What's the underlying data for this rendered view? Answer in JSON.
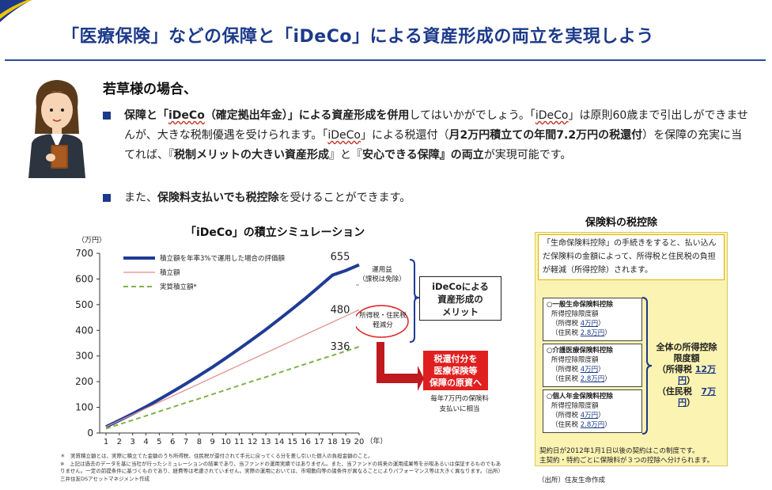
{
  "page_title": "「医療保険」などの保障と「iDeCo」による資産形成の両立を実現しよう",
  "subhead": "若草様の場合、",
  "bullets": [
    {
      "parts": [
        {
          "t": "保障と「",
          "b": true
        },
        {
          "t": "iDeCo",
          "b": true,
          "u": true
        },
        {
          "t": "（確定拠出年金）」による資産形成を併用",
          "b": true
        },
        {
          "t": "してはいかがでしょう。「"
        },
        {
          "t": "iDeCo",
          "u": true
        },
        {
          "t": "」は原則60歳まで引出しができませんが、大きな税制優遇を受けられます。「"
        },
        {
          "t": "iDeCo",
          "u": true
        },
        {
          "t": "」による税還付（"
        },
        {
          "t": "月2万円積立ての年間7.2万円の税還付",
          "b": true
        },
        {
          "t": "）を保障の充実に当てれば、『"
        },
        {
          "t": "税制メリットの大きい資産形成",
          "b": true
        },
        {
          "t": "』と『"
        },
        {
          "t": "安心できる保障",
          "b": true
        },
        {
          "t": "』の両立",
          "b": true
        },
        {
          "t": "が実現可能です。"
        }
      ]
    },
    {
      "parts": [
        {
          "t": "また、"
        },
        {
          "t": "保険料支払いでも税控除",
          "b": true
        },
        {
          "t": "を受けることができます。"
        }
      ]
    }
  ],
  "chart_data": {
    "type": "line",
    "title": "「iDeCo」の積立シミュレーション",
    "ylabel": "（万円）",
    "xlabel": "（年）",
    "ylim": [
      0,
      700
    ],
    "yticks": [
      0,
      100,
      200,
      300,
      400,
      500,
      600,
      700
    ],
    "x": [
      1,
      2,
      3,
      4,
      5,
      6,
      7,
      8,
      9,
      10,
      11,
      12,
      13,
      14,
      15,
      16,
      17,
      18,
      19,
      20
    ],
    "series": [
      {
        "name": "積立額を年率3%で運用した場合の評価額",
        "color": "#1f3c94",
        "width": 4,
        "dash": "",
        "values": [
          24,
          49,
          75,
          102,
          131,
          161,
          192,
          224,
          257,
          292,
          328,
          365,
          403,
          443,
          484,
          526,
          570,
          615,
          633,
          655
        ]
      },
      {
        "name": "積立額",
        "color": "#e08a8a",
        "width": 1.2,
        "dash": "",
        "values": [
          24,
          48,
          72,
          96,
          120,
          144,
          168,
          192,
          216,
          240,
          264,
          288,
          312,
          336,
          360,
          384,
          408,
          432,
          456,
          480
        ]
      },
      {
        "name": "実質積立額*",
        "color": "#7fb24a",
        "width": 2,
        "dash": "6,4",
        "values": [
          17,
          34,
          50,
          67,
          84,
          101,
          118,
          134,
          151,
          168,
          185,
          202,
          218,
          235,
          252,
          269,
          286,
          302,
          319,
          336
        ]
      }
    ],
    "end_labels": [
      "655",
      "480",
      "336"
    ],
    "legend_placement": "top-left",
    "grid": false,
    "brace_labels": [
      "運用益\n（課税は免除）",
      "所得税・住民税\n軽減分"
    ]
  },
  "callouts": {
    "meaning": "iDeCoによる\n資産形成の\nメリット",
    "red": "税還付分を\n医療保険等\n保障の原資へ",
    "note": "毎年7万円の保険料\n支払いに相当"
  },
  "footnotes": "＊　実質積立額とは、実際に積立てた金額のうち所得税、住民税が還付されて手元に戻ってくる分を差し引いた個人の負担金額のこと。\n※　上記は過去のデータを基に当社が行ったシミュレーションの結果であり、当ファンドの運用実績ではありません。また、当ファンドの将来の運用成果等を示唆あるいは保証するものでもありません。一定の前提条件に基づくものであり、経費等は考慮されていません。実際の運用においては、市場動向等の諸条件が異なることによりパフォーマンス等は大きく異なります。（出所）三井住友DSアセットマネジメント作成",
  "tax": {
    "title": "保険料の税控除",
    "intro": "「生命保険料控除」の手続きをすると、払い込んだ保険料の金額によって、所得税と住民税の負担が軽減（所得控除）されます。",
    "boxes": [
      {
        "heading": "○一般生命保険料控除",
        "sub": "所得控除限度額",
        "l1": "（所得税",
        "v1": "4万円",
        "e1": "）",
        "l2": "（住民税",
        "v2": "2.8万円",
        "e2": "）"
      },
      {
        "heading": "○介護医療保険料控除",
        "sub": "所得控除限度額",
        "l1": "（所得税",
        "v1": "4万円",
        "e1": "）",
        "l2": "（住民税",
        "v2": "2.8万円",
        "e2": "）"
      },
      {
        "heading": "○個人年金保険料控除",
        "sub": "所得控除限度額",
        "l1": "（所得税",
        "v1": "4万円",
        "e1": "）",
        "l2": "（住民税",
        "v2": "2.8万円",
        "e2": "）"
      }
    ],
    "total": {
      "line1": "全体の所得控除",
      "line2": "限度額",
      "l1": "（所得税",
      "v1": "12万円",
      "e1": "）",
      "l2": "（住民税",
      "v2": "7万円",
      "e2": "）"
    },
    "bottom": "契約日が2012年1月1日以後の契約はこの制度です。\n主契約・特約ごとに保険料が３つの控除へ分けられます。",
    "source": "（出所）住友生命作成"
  },
  "colors": {
    "accent": "#1d3a8a",
    "red": "#e02020",
    "panel": "#fbf3b2"
  }
}
